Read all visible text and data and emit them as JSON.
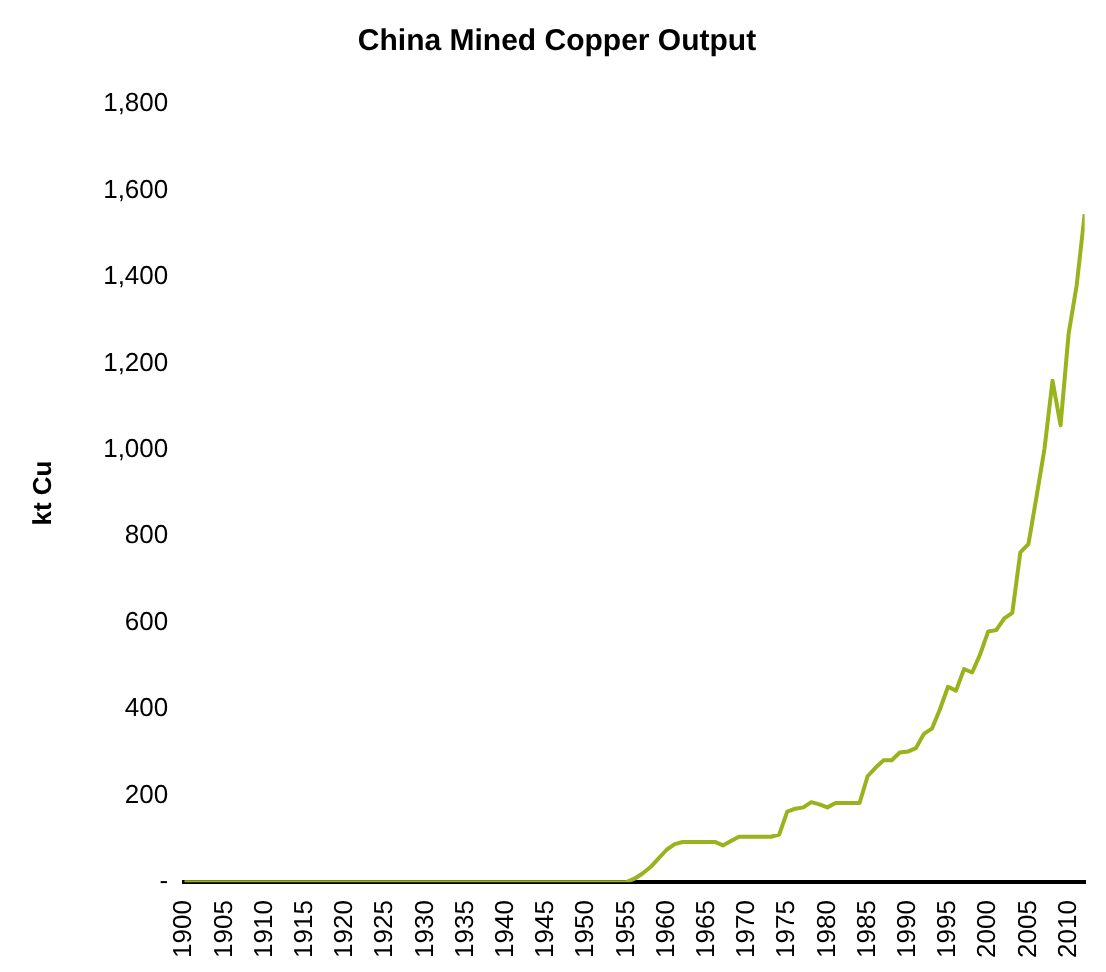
{
  "chart_data": {
    "type": "line",
    "title": "China Mined Copper Output",
    "ylabel": "kt Cu",
    "x": [
      1900,
      1955,
      1956,
      1957,
      1958,
      1959,
      1960,
      1961,
      1962,
      1963,
      1964,
      1965,
      1966,
      1967,
      1968,
      1969,
      1970,
      1971,
      1972,
      1973,
      1974,
      1975,
      1976,
      1977,
      1978,
      1979,
      1980,
      1981,
      1982,
      1983,
      1984,
      1985,
      1986,
      1987,
      1988,
      1989,
      1990,
      1991,
      1992,
      1993,
      1994,
      1995,
      1996,
      1997,
      1998,
      1999,
      2000,
      2001,
      2002,
      2003,
      2004,
      2005,
      2006,
      2007,
      2008,
      2009,
      2010,
      2011,
      2012
    ],
    "series": [
      {
        "color": "#99b31c",
        "values": [
          0,
          0,
          8,
          20,
          35,
          55,
          75,
          88,
          93,
          93,
          93,
          93,
          93,
          85,
          95,
          105,
          105,
          105,
          105,
          105,
          110,
          163,
          170,
          173,
          185,
          180,
          173,
          183,
          183,
          183,
          183,
          245,
          265,
          282,
          282,
          300,
          302,
          310,
          343,
          355,
          400,
          452,
          443,
          493,
          485,
          527,
          580,
          583,
          610,
          623,
          763,
          782,
          890,
          1002,
          1160,
          1057,
          1268,
          1380,
          1545
        ]
      }
    ],
    "xlim": [
      1900,
      2012
    ],
    "xticks": [
      1900,
      1905,
      1910,
      1915,
      1920,
      1925,
      1930,
      1935,
      1940,
      1945,
      1950,
      1955,
      1960,
      1965,
      1970,
      1975,
      1980,
      1985,
      1990,
      1995,
      2000,
      2005,
      2010
    ],
    "ylim": [
      0,
      1800
    ],
    "yticks": [
      {
        "value": 0,
        "label": "-"
      },
      {
        "value": 200,
        "label": "200"
      },
      {
        "value": 400,
        "label": "400"
      },
      {
        "value": 600,
        "label": "600"
      },
      {
        "value": 800,
        "label": "800"
      },
      {
        "value": 1000,
        "label": "1,000"
      },
      {
        "value": 1200,
        "label": "1,200"
      },
      {
        "value": 1400,
        "label": "1,400"
      },
      {
        "value": 1600,
        "label": "1,600"
      },
      {
        "value": 1800,
        "label": "1,800"
      }
    ],
    "grid": false,
    "legend": false,
    "marker": "none",
    "line_style": "solid"
  }
}
